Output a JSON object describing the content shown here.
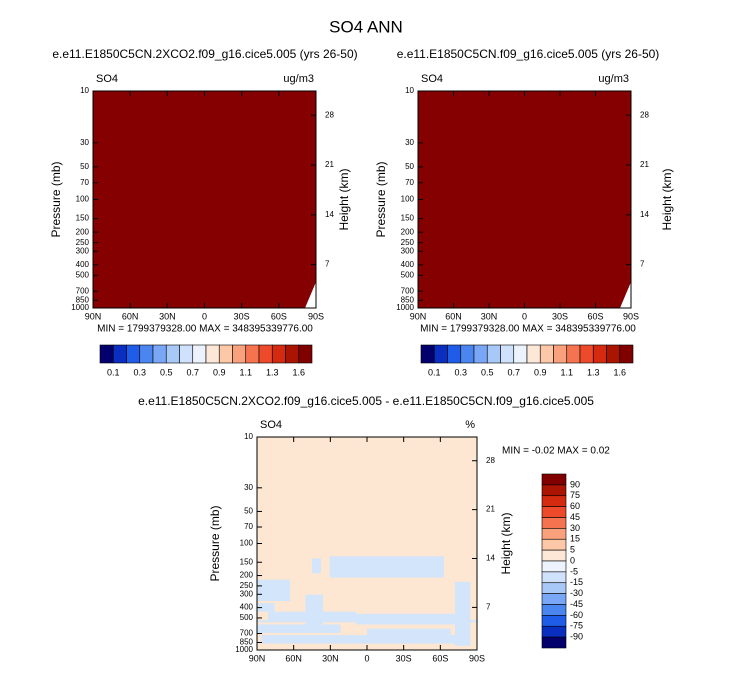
{
  "title": "SO4 ANN",
  "chart_data": [
    {
      "type": "contour",
      "title": "e.e11.E1850C5CN.2XCO2.f09_g16.cice5.005 (yrs 26-50)",
      "left_label": "SO4",
      "right_label": "ug/m3",
      "ylabel": "Pressure (mb)",
      "y2label": "Height (km)",
      "xlim": [
        90,
        -90
      ],
      "xticks": [
        {
          "value": 90,
          "label": "90N"
        },
        {
          "value": 60,
          "label": "60N"
        },
        {
          "value": 30,
          "label": "30N"
        },
        0,
        {
          "value": -30,
          "label": "30S"
        },
        {
          "value": -60,
          "label": "60S"
        },
        {
          "value": -90,
          "label": "90S"
        }
      ],
      "ylim": [
        1000,
        10
      ],
      "log_y": true,
      "yticks": [
        10,
        30,
        50,
        70,
        100,
        150,
        200,
        250,
        300,
        400,
        500,
        700,
        850,
        1000
      ],
      "y2lim": [
        0.9,
        31.4
      ],
      "y2ticks": [
        7,
        14,
        21,
        28
      ],
      "fill_color": "#850000",
      "stats": "MIN = 1799379328.00  MAX = 348395339776.00",
      "colorbar": {
        "orientation": "horizontal",
        "colors": [
          "#03006e",
          "#0a2ec0",
          "#1f5de8",
          "#4a85f0",
          "#7aa7f5",
          "#a8c8f8",
          "#cfe1fb",
          "#ecf3fd",
          "#fde8d8",
          "#fcc8a8",
          "#f9a07c",
          "#f5744f",
          "#ec4a2a",
          "#d42a10",
          "#aa1400",
          "#800000"
        ],
        "labels": [
          0.1,
          0.3,
          0.5,
          0.7,
          0.9,
          1.1,
          1.3,
          1.6
        ]
      }
    },
    {
      "type": "contour",
      "title": "e.e11.E1850C5CN.f09_g16.cice5.005 (yrs 26-50)",
      "left_label": "SO4",
      "right_label": "ug/m3",
      "ylabel": "Pressure (mb)",
      "y2label": "Height (km)",
      "xlim": [
        90,
        -90
      ],
      "xticks": [
        {
          "value": 90,
          "label": "90N"
        },
        {
          "value": 60,
          "label": "60N"
        },
        {
          "value": 30,
          "label": "30N"
        },
        0,
        {
          "value": -30,
          "label": "30S"
        },
        {
          "value": -60,
          "label": "60S"
        },
        {
          "value": -90,
          "label": "90S"
        }
      ],
      "ylim": [
        1000,
        10
      ],
      "log_y": true,
      "yticks": [
        10,
        30,
        50,
        70,
        100,
        150,
        200,
        250,
        300,
        400,
        500,
        700,
        850,
        1000
      ],
      "y2lim": [
        0.9,
        31.4
      ],
      "y2ticks": [
        7,
        14,
        21,
        28
      ],
      "fill_color": "#850000",
      "stats": "MIN = 1799379328.00  MAX = 348395339776.00",
      "colorbar": {
        "orientation": "horizontal",
        "colors": [
          "#03006e",
          "#0a2ec0",
          "#1f5de8",
          "#4a85f0",
          "#7aa7f5",
          "#a8c8f8",
          "#cfe1fb",
          "#ecf3fd",
          "#fde8d8",
          "#fcc8a8",
          "#f9a07c",
          "#f5744f",
          "#ec4a2a",
          "#d42a10",
          "#aa1400",
          "#800000"
        ],
        "labels": [
          0.1,
          0.3,
          0.5,
          0.7,
          0.9,
          1.1,
          1.3,
          1.6
        ]
      }
    },
    {
      "type": "contour",
      "title": "e.e11.E1850C5CN.2XCO2.f09_g16.cice5.005 - e.e11.E1850C5CN.f09_g16.cice5.005",
      "left_label": "SO4",
      "right_label": "%",
      "ylabel": "Pressure (mb)",
      "y2label": "Height (km)",
      "xlim": [
        90,
        -90
      ],
      "xticks": [
        {
          "value": 90,
          "label": "90N"
        },
        {
          "value": 60,
          "label": "60N"
        },
        {
          "value": 30,
          "label": "30N"
        },
        0,
        {
          "value": -30,
          "label": "30S"
        },
        {
          "value": -60,
          "label": "60S"
        },
        {
          "value": -90,
          "label": "90S"
        }
      ],
      "ylim": [
        1000,
        10
      ],
      "log_y": true,
      "yticks": [
        10,
        30,
        50,
        70,
        100,
        150,
        200,
        250,
        300,
        400,
        500,
        700,
        850,
        1000
      ],
      "y2lim": [
        0.9,
        31.4
      ],
      "y2ticks": [
        7,
        14,
        21,
        28
      ],
      "fill_color": "#fde6d2",
      "patch_color": "#d3e5fa",
      "stats": "MIN = -0.02  MAX =  0.02",
      "colorbar": {
        "orientation": "vertical",
        "colors": [
          "#800000",
          "#aa1400",
          "#d42a10",
          "#ec4a2a",
          "#f5744f",
          "#f9a07c",
          "#fcc8a8",
          "#fde8d8",
          "#ecf3fd",
          "#cfe1fb",
          "#a8c8f8",
          "#7aa7f5",
          "#4a85f0",
          "#1f5de8",
          "#0a2ec0",
          "#03006e"
        ],
        "labels": [
          90,
          75,
          60,
          45,
          30,
          15,
          5,
          0,
          -5,
          -15,
          -30,
          -45,
          -60,
          -75,
          -90
        ]
      }
    }
  ]
}
